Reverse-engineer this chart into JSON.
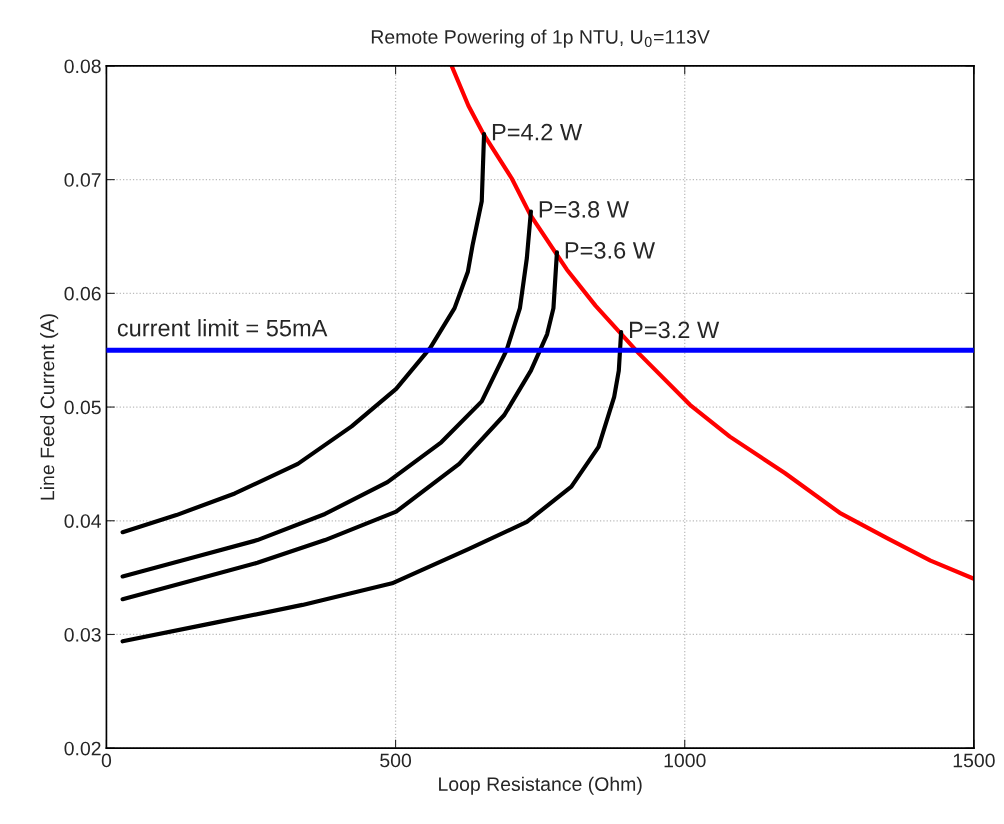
{
  "chart_data": {
    "type": "line",
    "title": "Remote Powering of 1p NTU, U$_{0}$=113V",
    "xlabel": "Loop Resistance (Ohm)",
    "ylabel": "Line Feed Current (A)",
    "xlim": [
      0,
      1500
    ],
    "xticks": [
      0,
      500,
      1000,
      1500
    ],
    "ylim": [
      0.02,
      0.08
    ],
    "yticks": [
      0.02,
      0.03,
      0.04,
      0.05,
      0.06,
      0.07,
      0.08
    ],
    "grid": true,
    "line_style": "solid",
    "series": [
      {
        "color": "#ff0000",
        "x": [
          597,
          626,
          651,
          701,
          733,
          796,
          846,
          921,
          1009,
          1078,
          1173,
          1268,
          1349,
          1425,
          1500
        ],
        "values": [
          0.08,
          0.0765,
          0.0741,
          0.0701,
          0.0669,
          0.0621,
          0.0589,
          0.0547,
          0.0502,
          0.0474,
          0.0442,
          0.0407,
          0.0385,
          0.0365,
          0.0349
        ]
      },
      {
        "color": "#000000",
        "x": [
          28,
          121,
          222,
          331,
          424,
          501,
          560,
          602,
          625,
          633,
          649,
          653
        ],
        "values": [
          0.039,
          0.0405,
          0.0424,
          0.045,
          0.0483,
          0.0516,
          0.0552,
          0.0587,
          0.0619,
          0.0642,
          0.0681,
          0.074
        ]
      },
      {
        "color": "#000000",
        "x": [
          28,
          145,
          261,
          378,
          486,
          579,
          649,
          692,
          715,
          727,
          734
        ],
        "values": [
          0.0351,
          0.0367,
          0.0383,
          0.0406,
          0.0434,
          0.0469,
          0.0505,
          0.055,
          0.0587,
          0.0631,
          0.0672
        ]
      },
      {
        "color": "#000000",
        "x": [
          28,
          145,
          261,
          378,
          501,
          610,
          688,
          734,
          762,
          773,
          779
        ],
        "values": [
          0.0331,
          0.0347,
          0.0363,
          0.0383,
          0.0408,
          0.045,
          0.0493,
          0.0532,
          0.0564,
          0.0587,
          0.0636
        ]
      },
      {
        "color": "#000000",
        "x": [
          28,
          184,
          339,
          494,
          626,
          727,
          804,
          851,
          878,
          886,
          890
        ],
        "values": [
          0.0294,
          0.031,
          0.0326,
          0.0345,
          0.0375,
          0.0399,
          0.043,
          0.0465,
          0.0509,
          0.0532,
          0.0566
        ]
      }
    ],
    "ref_lines": [
      {
        "axis": "y",
        "value": 0.055,
        "label": "current limit = 55mA",
        "color": "#0000ff"
      }
    ],
    "annotations": [
      {
        "text": "P=4.2 W",
        "x": 653,
        "y": 0.074
      },
      {
        "text": "P=3.8 W",
        "x": 734,
        "y": 0.0672
      },
      {
        "text": "P=3.6 W",
        "x": 779,
        "y": 0.0636
      },
      {
        "text": "P=3.2 W",
        "x": 890,
        "y": 0.0566
      }
    ]
  }
}
